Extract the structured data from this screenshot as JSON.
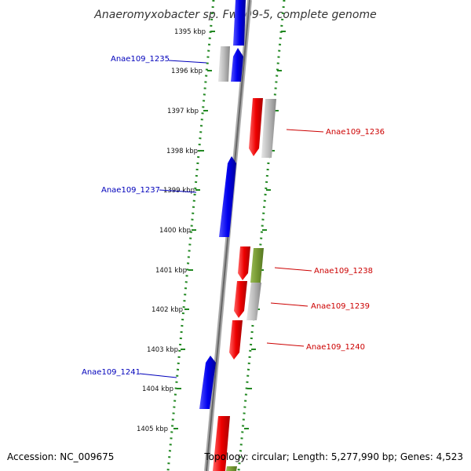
{
  "title": "Anaeromyxobacter sp. Fw109-5, complete genome",
  "footer": {
    "accession": "Accession: NC_009675",
    "topology": "Topology: circular; Length: 5,277,990 bp; Genes: 4,523"
  },
  "kbp_ticks": [
    "1395 kbp",
    "1396 kbp",
    "1397 kbp",
    "1398 kbp",
    "1399 kbp",
    "1400 kbp",
    "1401 kbp",
    "1402 kbp",
    "1403 kbp",
    "1404 kbp",
    "1405 kbp"
  ],
  "gene_labels": [
    {
      "text": "Anae109_1235",
      "strand": "minus"
    },
    {
      "text": "Anae109_1236",
      "strand": "plus"
    },
    {
      "text": "Anae109_1237",
      "strand": "minus"
    },
    {
      "text": "Anae109_1238",
      "strand": "plus"
    },
    {
      "text": "Anae109_1239",
      "strand": "plus"
    },
    {
      "text": "Anae109_1240",
      "strand": "plus"
    },
    {
      "text": "Anae109_1241",
      "strand": "minus"
    }
  ],
  "colors": {
    "minus_strand": "#0000ee",
    "plus_strand": "#ee0000",
    "rna_gray": "#bbbbbb",
    "other_green": "#779933",
    "backbone": "#888888",
    "dotted_track": "#228822",
    "label_minus": "#0000bb",
    "label_plus": "#cc0000"
  }
}
